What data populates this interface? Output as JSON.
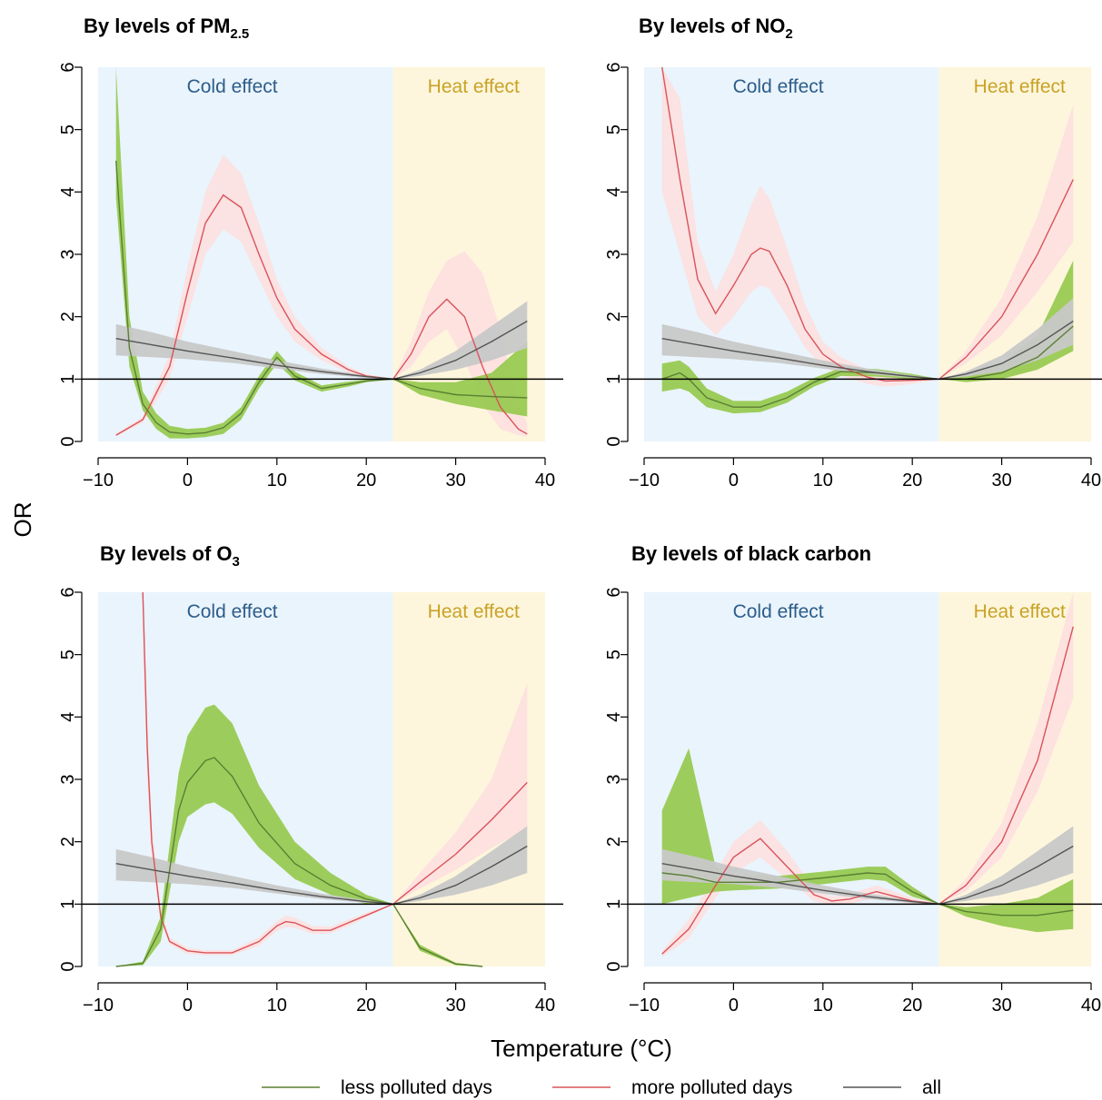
{
  "figure": {
    "shared_ylabel": "OR",
    "shared_xlabel": "Temperature (°C)",
    "region_labels": {
      "cold": "Cold effect",
      "heat": "Heat effect"
    },
    "colors": {
      "cold_region": "#eaf4fc",
      "heat_region": "#fdf6dc",
      "cold_text": "#2c5d8a",
      "heat_text": "#c9a227",
      "less": "#93c94a",
      "less_line": "#5b7f34",
      "more": "#fde0e0",
      "more_line": "#d9545a",
      "all": "#c8c8c8",
      "all_line": "#555555"
    },
    "legend": [
      {
        "key": "less",
        "label": "less polluted days"
      },
      {
        "key": "more",
        "label": "more polluted days"
      },
      {
        "key": "all",
        "label": "all"
      }
    ]
  },
  "chart_data": [
    {
      "type": "line",
      "title": "By levels of PM",
      "title_sub": "2.5",
      "xlim": [
        -10,
        40
      ],
      "ylim": [
        0,
        6
      ],
      "xticks": [
        -10,
        0,
        10,
        20,
        30,
        40
      ],
      "yticks": [
        0,
        1,
        2,
        3,
        4,
        5,
        6
      ],
      "cold_range": [
        -10,
        23
      ],
      "heat_range": [
        23,
        40
      ],
      "reference_line": 1,
      "series": [
        {
          "key": "all",
          "x": [
            -8,
            -4,
            0,
            5,
            10,
            15,
            20,
            23,
            26,
            30,
            34,
            38
          ],
          "y": [
            1.65,
            1.55,
            1.45,
            1.34,
            1.22,
            1.12,
            1.04,
            1.0,
            1.1,
            1.3,
            1.6,
            1.93
          ],
          "lo": [
            1.38,
            1.35,
            1.32,
            1.26,
            1.17,
            1.08,
            1.02,
            1.0,
            1.05,
            1.15,
            1.3,
            1.5
          ],
          "hi": [
            1.88,
            1.75,
            1.6,
            1.45,
            1.3,
            1.17,
            1.06,
            1.0,
            1.15,
            1.45,
            1.85,
            2.25
          ]
        },
        {
          "key": "more",
          "x": [
            -8,
            -5,
            -2,
            0,
            2,
            4,
            6,
            8,
            10,
            12,
            15,
            18,
            20,
            23,
            25,
            27,
            29,
            31,
            33,
            35,
            37,
            38
          ],
          "y": [
            0.1,
            0.35,
            1.2,
            2.4,
            3.5,
            3.95,
            3.75,
            3.0,
            2.3,
            1.8,
            1.4,
            1.15,
            1.05,
            1.0,
            1.4,
            2.0,
            2.28,
            2.0,
            1.2,
            0.55,
            0.2,
            0.12
          ],
          "lo": [
            0.08,
            0.3,
            1.0,
            2.0,
            3.0,
            3.4,
            3.2,
            2.6,
            2.0,
            1.6,
            1.3,
            1.1,
            1.02,
            1.0,
            1.2,
            1.6,
            1.8,
            1.3,
            0.6,
            0.2,
            0.1,
            0.08
          ],
          "hi": [
            0.12,
            0.4,
            1.4,
            2.8,
            4.0,
            4.6,
            4.3,
            3.5,
            2.6,
            2.0,
            1.5,
            1.2,
            1.08,
            1.0,
            1.6,
            2.4,
            2.9,
            3.05,
            2.7,
            1.8,
            0.6,
            0.3
          ]
        },
        {
          "key": "less",
          "x": [
            -8,
            -6.5,
            -5,
            -3.5,
            -2,
            0,
            2,
            4,
            6,
            8,
            10,
            12,
            15,
            18,
            20,
            23,
            26,
            30,
            34,
            38
          ],
          "y": [
            4.5,
            1.5,
            0.6,
            0.3,
            0.15,
            0.12,
            0.14,
            0.22,
            0.45,
            0.95,
            1.35,
            1.05,
            0.85,
            0.92,
            0.97,
            1.0,
            0.85,
            0.75,
            0.72,
            0.7
          ],
          "lo": [
            3.9,
            1.2,
            0.5,
            0.2,
            0.05,
            0.05,
            0.07,
            0.12,
            0.35,
            0.85,
            1.25,
            0.98,
            0.8,
            0.88,
            0.95,
            1.0,
            0.75,
            0.6,
            0.5,
            0.4
          ],
          "hi": [
            6.0,
            2.0,
            0.8,
            0.45,
            0.25,
            0.2,
            0.22,
            0.3,
            0.55,
            1.05,
            1.45,
            1.12,
            0.9,
            0.96,
            0.99,
            1.0,
            0.95,
            0.95,
            1.1,
            1.6
          ]
        }
      ]
    },
    {
      "type": "line",
      "title": "By levels of NO",
      "title_sub": "2",
      "xlim": [
        -10,
        40
      ],
      "ylim": [
        0,
        6
      ],
      "xticks": [
        -10,
        0,
        10,
        20,
        30,
        40
      ],
      "yticks": [
        0,
        1,
        2,
        3,
        4,
        5,
        6
      ],
      "cold_range": [
        -10,
        23
      ],
      "heat_range": [
        23,
        40
      ],
      "reference_line": 1,
      "series": [
        {
          "key": "all",
          "x": [
            -8,
            -4,
            0,
            5,
            10,
            15,
            20,
            23,
            26,
            30,
            34,
            38
          ],
          "y": [
            1.65,
            1.55,
            1.45,
            1.34,
            1.22,
            1.12,
            1.04,
            1.0,
            1.08,
            1.25,
            1.55,
            1.93
          ],
          "lo": [
            1.38,
            1.35,
            1.32,
            1.26,
            1.17,
            1.08,
            1.02,
            1.0,
            1.04,
            1.12,
            1.3,
            1.55
          ],
          "hi": [
            1.88,
            1.75,
            1.6,
            1.45,
            1.3,
            1.17,
            1.06,
            1.0,
            1.12,
            1.38,
            1.8,
            2.3
          ]
        },
        {
          "key": "more",
          "x": [
            -8,
            -6,
            -4,
            -2,
            0,
            2,
            3,
            4,
            6,
            8,
            10,
            12,
            15,
            17,
            20,
            23,
            26,
            30,
            34,
            38
          ],
          "y": [
            6.0,
            4.2,
            2.6,
            2.05,
            2.5,
            3.0,
            3.1,
            3.05,
            2.5,
            1.8,
            1.4,
            1.2,
            1.03,
            0.97,
            0.98,
            1.0,
            1.35,
            2.0,
            3.0,
            4.2
          ],
          "lo": [
            4.0,
            3.0,
            2.0,
            1.7,
            2.0,
            2.4,
            2.5,
            2.45,
            2.0,
            1.5,
            1.2,
            1.05,
            0.92,
            0.88,
            0.92,
            1.0,
            1.25,
            1.7,
            2.4,
            3.2
          ],
          "hi": [
            6.0,
            5.5,
            3.2,
            2.4,
            3.0,
            3.8,
            4.1,
            3.9,
            3.1,
            2.2,
            1.6,
            1.35,
            1.15,
            1.06,
            1.04,
            1.0,
            1.45,
            2.3,
            3.6,
            5.4
          ]
        },
        {
          "key": "less",
          "x": [
            -8,
            -6,
            -5,
            -3,
            0,
            3,
            6,
            9,
            12,
            16,
            20,
            23,
            26,
            30,
            34,
            38
          ],
          "y": [
            1.0,
            1.1,
            1.0,
            0.7,
            0.55,
            0.55,
            0.7,
            0.95,
            1.12,
            1.1,
            1.04,
            1.0,
            1.0,
            1.1,
            1.35,
            1.85
          ],
          "lo": [
            0.8,
            0.85,
            0.8,
            0.55,
            0.45,
            0.47,
            0.62,
            0.88,
            1.05,
            1.04,
            1.0,
            1.0,
            0.95,
            1.0,
            1.15,
            1.45
          ],
          "hi": [
            1.25,
            1.3,
            1.2,
            0.85,
            0.65,
            0.65,
            0.8,
            1.02,
            1.18,
            1.16,
            1.08,
            1.0,
            1.05,
            1.25,
            1.7,
            2.9
          ]
        }
      ]
    },
    {
      "type": "line",
      "title": "By levels of O",
      "title_sub": "3",
      "xlim": [
        -10,
        40
      ],
      "ylim": [
        0,
        6
      ],
      "xticks": [
        -10,
        0,
        10,
        20,
        30,
        40
      ],
      "yticks": [
        0,
        1,
        2,
        3,
        4,
        5,
        6
      ],
      "cold_range": [
        -10,
        23
      ],
      "heat_range": [
        23,
        40
      ],
      "reference_line": 1,
      "series": [
        {
          "key": "all",
          "x": [
            -8,
            -4,
            0,
            5,
            10,
            15,
            20,
            23,
            26,
            30,
            34,
            38
          ],
          "y": [
            1.65,
            1.55,
            1.45,
            1.34,
            1.22,
            1.12,
            1.04,
            1.0,
            1.1,
            1.3,
            1.6,
            1.93
          ],
          "lo": [
            1.38,
            1.35,
            1.32,
            1.26,
            1.17,
            1.08,
            1.02,
            1.0,
            1.05,
            1.15,
            1.3,
            1.5
          ],
          "hi": [
            1.88,
            1.75,
            1.6,
            1.45,
            1.3,
            1.17,
            1.06,
            1.0,
            1.15,
            1.45,
            1.85,
            2.25
          ]
        },
        {
          "key": "more",
          "x": [
            -5,
            -4.5,
            -4,
            -3,
            -2,
            0,
            2,
            5,
            8,
            10,
            11,
            12,
            14,
            16,
            18,
            20,
            23,
            26,
            30,
            34,
            38
          ],
          "y": [
            6.0,
            3.5,
            2.0,
            0.8,
            0.4,
            0.25,
            0.22,
            0.22,
            0.4,
            0.65,
            0.72,
            0.7,
            0.58,
            0.58,
            0.7,
            0.82,
            1.0,
            1.35,
            1.8,
            2.35,
            2.95
          ],
          "lo": [
            5.0,
            3.0,
            1.7,
            0.7,
            0.35,
            0.2,
            0.18,
            0.18,
            0.33,
            0.57,
            0.63,
            0.62,
            0.52,
            0.53,
            0.65,
            0.78,
            1.0,
            1.25,
            1.55,
            1.9,
            2.2
          ],
          "hi": [
            6.0,
            4.0,
            2.3,
            0.92,
            0.46,
            0.3,
            0.26,
            0.26,
            0.47,
            0.73,
            0.82,
            0.78,
            0.65,
            0.64,
            0.75,
            0.86,
            1.0,
            1.5,
            2.15,
            3.0,
            4.55
          ]
        },
        {
          "key": "less",
          "x": [
            -8,
            -5,
            -3,
            -1,
            0,
            2,
            3,
            5,
            8,
            12,
            16,
            20,
            23,
            26,
            30,
            33
          ],
          "y": [
            0.0,
            0.05,
            0.6,
            2.5,
            2.95,
            3.3,
            3.35,
            3.05,
            2.3,
            1.65,
            1.3,
            1.08,
            1.0,
            0.3,
            0.04,
            0.0
          ],
          "lo": [
            0.0,
            0.02,
            0.4,
            2.0,
            2.4,
            2.6,
            2.63,
            2.45,
            1.9,
            1.4,
            1.15,
            1.0,
            1.0,
            0.25,
            0.02,
            0.0
          ],
          "hi": [
            0.0,
            0.08,
            0.8,
            3.1,
            3.7,
            4.15,
            4.2,
            3.9,
            2.9,
            2.0,
            1.5,
            1.15,
            1.0,
            0.35,
            0.06,
            0.01
          ]
        }
      ]
    },
    {
      "type": "line",
      "title": "By levels of black carbon",
      "title_sub": "",
      "xlim": [
        -10,
        40
      ],
      "ylim": [
        0,
        6
      ],
      "xticks": [
        -10,
        0,
        10,
        20,
        30,
        40
      ],
      "yticks": [
        0,
        1,
        2,
        3,
        4,
        5,
        6
      ],
      "cold_range": [
        -10,
        23
      ],
      "heat_range": [
        23,
        40
      ],
      "reference_line": 1,
      "series": [
        {
          "key": "all",
          "x": [
            -8,
            -4,
            0,
            5,
            10,
            15,
            20,
            23,
            26,
            30,
            34,
            38
          ],
          "y": [
            1.65,
            1.55,
            1.45,
            1.34,
            1.22,
            1.12,
            1.04,
            1.0,
            1.1,
            1.3,
            1.6,
            1.93
          ],
          "lo": [
            1.38,
            1.35,
            1.32,
            1.26,
            1.17,
            1.08,
            1.02,
            1.0,
            1.05,
            1.15,
            1.3,
            1.5
          ],
          "hi": [
            1.88,
            1.75,
            1.6,
            1.45,
            1.3,
            1.17,
            1.06,
            1.0,
            1.15,
            1.45,
            1.85,
            2.25
          ]
        },
        {
          "key": "more",
          "x": [
            -8,
            -5,
            -2,
            0,
            3,
            6,
            9,
            11,
            13,
            16,
            20,
            23,
            26,
            30,
            34,
            38
          ],
          "y": [
            0.2,
            0.6,
            1.3,
            1.75,
            2.05,
            1.6,
            1.15,
            1.05,
            1.08,
            1.2,
            1.05,
            1.0,
            1.3,
            2.0,
            3.3,
            5.45
          ],
          "lo": [
            0.15,
            0.45,
            1.1,
            1.5,
            1.75,
            1.4,
            1.05,
            0.98,
            1.0,
            1.1,
            1.0,
            1.0,
            1.2,
            1.75,
            2.8,
            4.3
          ],
          "hi": [
            0.25,
            0.75,
            1.5,
            2.0,
            2.35,
            1.85,
            1.25,
            1.12,
            1.16,
            1.3,
            1.1,
            1.0,
            1.4,
            2.3,
            3.9,
            6.0
          ]
        },
        {
          "key": "less",
          "x": [
            -8,
            -5,
            -2,
            0,
            5,
            10,
            15,
            17,
            20,
            23,
            26,
            30,
            34,
            38
          ],
          "y": [
            1.5,
            1.45,
            1.35,
            1.35,
            1.35,
            1.42,
            1.5,
            1.48,
            1.2,
            1.0,
            0.88,
            0.82,
            0.82,
            0.9
          ],
          "lo": [
            1.0,
            1.1,
            1.2,
            1.22,
            1.25,
            1.32,
            1.4,
            1.37,
            1.12,
            1.0,
            0.8,
            0.65,
            0.55,
            0.6
          ],
          "hi": [
            2.5,
            3.5,
            1.6,
            1.45,
            1.45,
            1.52,
            1.6,
            1.6,
            1.28,
            1.0,
            0.95,
            1.0,
            1.1,
            1.4
          ]
        }
      ]
    }
  ]
}
